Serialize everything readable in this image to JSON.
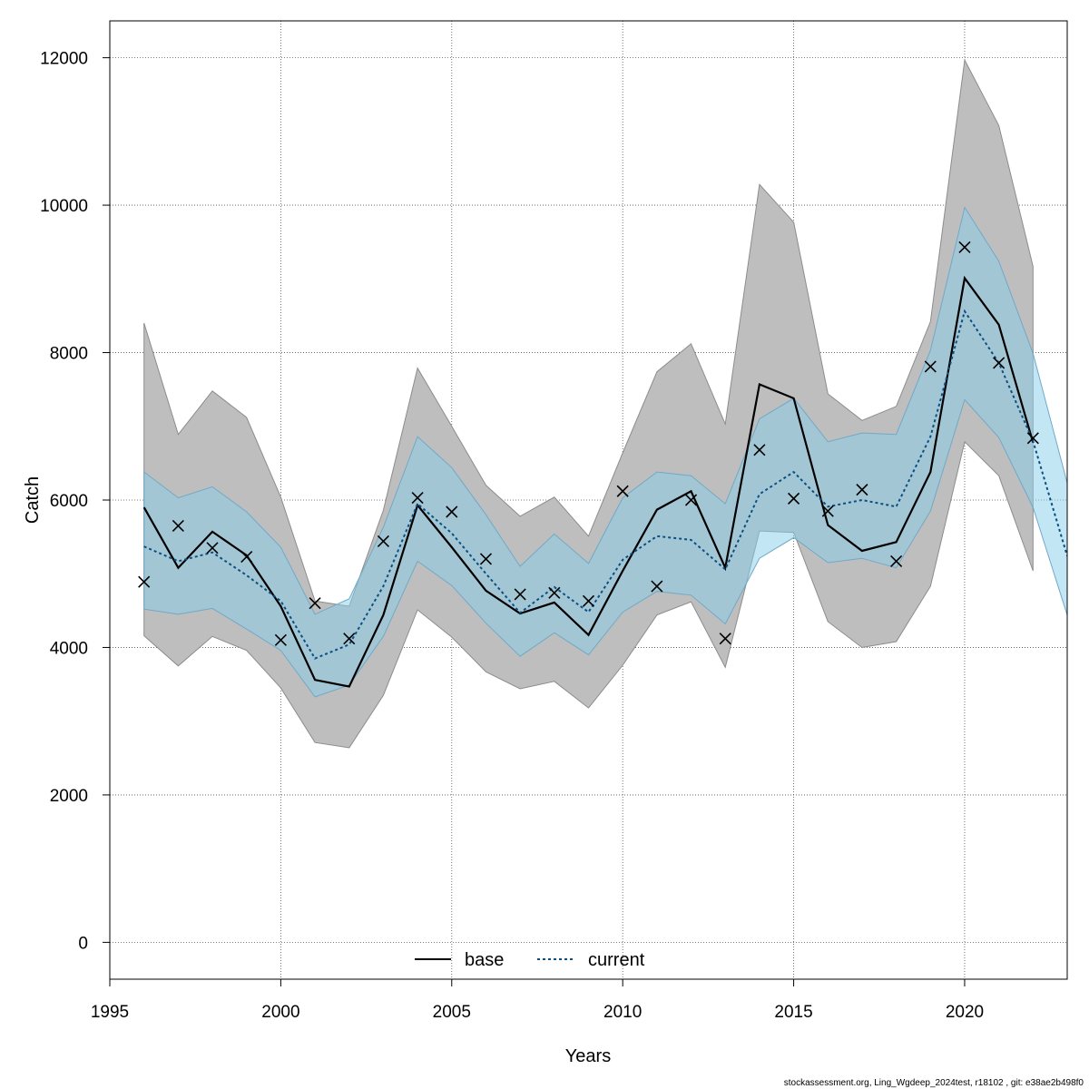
{
  "chart_data": {
    "type": "line",
    "xlabel": "Years",
    "ylabel": "Catch",
    "xlim": [
      1995,
      2023
    ],
    "ylim": [
      -500,
      12500
    ],
    "x_ticks": [
      "1995",
      "2000",
      "2005",
      "2010",
      "2015",
      "2020"
    ],
    "y_ticks": [
      "0",
      "2000",
      "4000",
      "6000",
      "8000",
      "10000",
      "12000"
    ],
    "grid": true,
    "legend_position": "bottom",
    "footer": "stockassessment.org, Ling_Wgdeep_2024test, r18102 , git: e38ae2b498f0",
    "years": [
      1996,
      1997,
      1998,
      1999,
      2000,
      2001,
      2002,
      2003,
      2004,
      2005,
      2006,
      2007,
      2008,
      2009,
      2010,
      2011,
      2012,
      2013,
      2014,
      2015,
      2016,
      2017,
      2018,
      2019,
      2020,
      2021,
      2022,
      2023
    ],
    "series": [
      {
        "name": "base",
        "color": "#000000",
        "dash": "solid",
        "band_color": "#bebebe",
        "values": [
          5900,
          5080,
          5570,
          5250,
          4560,
          3560,
          3470,
          4440,
          5930,
          5360,
          4770,
          4460,
          4610,
          4170,
          5040,
          5870,
          6120,
          5080,
          7570,
          7380,
          5660,
          5310,
          5430,
          6380,
          9010,
          8380,
          6780,
          null
        ],
        "lower": [
          4160,
          3750,
          4150,
          3960,
          3450,
          2710,
          2640,
          3350,
          4510,
          4140,
          3670,
          3440,
          3540,
          3180,
          3760,
          4440,
          4620,
          3730,
          5580,
          5560,
          4350,
          4000,
          4080,
          4830,
          6790,
          6330,
          5040,
          null
        ],
        "upper": [
          8400,
          6890,
          7480,
          7120,
          6040,
          4630,
          4560,
          5860,
          7790,
          7000,
          6200,
          5780,
          6040,
          5510,
          6640,
          7740,
          8120,
          7030,
          10280,
          9770,
          7440,
          7080,
          7270,
          8420,
          11970,
          11080,
          9170,
          null
        ]
      },
      {
        "name": "current",
        "color": "#0b4f82",
        "dash": "dotted",
        "band_color": "#87ceeb",
        "values": [
          5370,
          5170,
          5290,
          4980,
          4630,
          3850,
          4040,
          4830,
          5950,
          5550,
          5000,
          4470,
          4820,
          4480,
          5190,
          5510,
          5460,
          5060,
          6080,
          6380,
          5910,
          6000,
          5910,
          6860,
          8560,
          7860,
          6800,
          5240
        ],
        "lower": [
          4520,
          4450,
          4530,
          4250,
          3960,
          3330,
          3490,
          4150,
          5170,
          4840,
          4330,
          3880,
          4200,
          3900,
          4480,
          4760,
          4710,
          4320,
          5210,
          5490,
          5150,
          5210,
          5080,
          5850,
          7360,
          6850,
          5900,
          4440
        ],
        "upper": [
          6380,
          6030,
          6180,
          5840,
          5360,
          4450,
          4660,
          5630,
          6860,
          6440,
          5800,
          5100,
          5540,
          5140,
          6030,
          6380,
          6330,
          5950,
          7100,
          7380,
          6790,
          6910,
          6890,
          8030,
          9970,
          9240,
          7990,
          6230
        ]
      }
    ],
    "observations": {
      "marker": "x",
      "years": [
        1996,
        1997,
        1998,
        1999,
        2000,
        2001,
        2002,
        2003,
        2004,
        2005,
        2006,
        2007,
        2008,
        2009,
        2010,
        2011,
        2012,
        2013,
        2014,
        2015,
        2016,
        2017,
        2018,
        2019,
        2020,
        2021,
        2022
      ],
      "values": [
        4890,
        5650,
        5350,
        5230,
        4100,
        4600,
        4120,
        5440,
        6030,
        5840,
        5200,
        4720,
        4740,
        4630,
        6120,
        4830,
        6000,
        4120,
        6680,
        6020,
        5850,
        6140,
        5170,
        7810,
        9430,
        7860,
        6840
      ]
    }
  }
}
